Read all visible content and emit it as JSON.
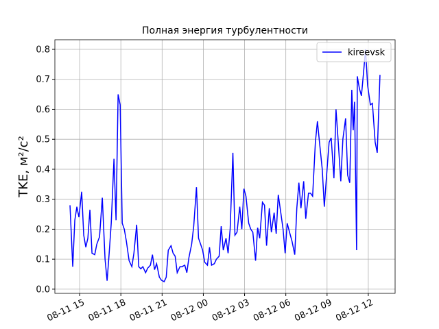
{
  "chart_data": {
    "type": "line",
    "title": "Полная энергия турбулентности",
    "y_label": "TKE, м²/с²",
    "x": [
      "08-11 14:18",
      "08-11 14:30",
      "08-11 14:39",
      "08-11 14:48",
      "08-11 14:57",
      "08-11 15:09",
      "08-11 15:18",
      "08-11 15:27",
      "08-11 15:36",
      "08-11 15:45",
      "08-11 15:54",
      "08-11 16:06",
      "08-11 16:15",
      "08-11 16:27",
      "08-11 16:39",
      "08-11 16:51",
      "08-11 17:00",
      "08-11 17:09",
      "08-11 17:18",
      "08-11 17:30",
      "08-11 17:39",
      "08-11 17:48",
      "08-11 17:57",
      "08-11 18:06",
      "08-11 18:15",
      "08-11 18:24",
      "08-11 18:36",
      "08-11 18:48",
      "08-11 18:57",
      "08-11 19:09",
      "08-11 19:18",
      "08-11 19:27",
      "08-11 19:36",
      "08-11 19:48",
      "08-11 19:57",
      "08-11 20:09",
      "08-11 20:18",
      "08-11 20:27",
      "08-11 20:36",
      "08-11 20:48",
      "08-11 20:57",
      "08-11 21:09",
      "08-11 21:18",
      "08-11 21:27",
      "08-11 21:39",
      "08-11 21:48",
      "08-11 21:57",
      "08-11 22:06",
      "08-11 22:18",
      "08-11 22:27",
      "08-11 22:39",
      "08-11 22:48",
      "08-11 22:57",
      "08-11 23:09",
      "08-11 23:18",
      "08-11 23:30",
      "08-11 23:39",
      "08-11 23:48",
      "08-11 23:57",
      "08-12 00:06",
      "08-12 00:18",
      "08-12 00:27",
      "08-12 00:36",
      "08-12 00:48",
      "08-12 00:57",
      "08-12 01:09",
      "08-12 01:18",
      "08-12 01:27",
      "08-12 01:39",
      "08-12 01:48",
      "08-12 01:57",
      "08-12 02:09",
      "08-12 02:18",
      "08-12 02:27",
      "08-12 02:39",
      "08-12 02:48",
      "08-12 02:57",
      "08-12 03:06",
      "08-12 03:18",
      "08-12 03:27",
      "08-12 03:36",
      "08-12 03:48",
      "08-12 03:57",
      "08-12 04:06",
      "08-12 04:18",
      "08-12 04:27",
      "08-12 04:36",
      "08-12 04:48",
      "08-12 04:57",
      "08-12 05:09",
      "08-12 05:18",
      "08-12 05:27",
      "08-12 05:39",
      "08-12 05:48",
      "08-12 05:57",
      "08-12 06:06",
      "08-12 06:18",
      "08-12 06:27",
      "08-12 06:39",
      "08-12 06:48",
      "08-12 06:57",
      "08-12 07:06",
      "08-12 07:18",
      "08-12 07:27",
      "08-12 07:39",
      "08-12 07:48",
      "08-12 07:57",
      "08-12 08:09",
      "08-12 08:18",
      "08-12 08:27",
      "08-12 08:39",
      "08-12 08:48",
      "08-12 08:57",
      "08-12 09:09",
      "08-12 09:18",
      "08-12 09:30",
      "08-12 09:39",
      "08-12 09:48",
      "08-12 10:00",
      "08-12 10:09",
      "08-12 10:21",
      "08-12 10:30",
      "08-12 10:39",
      "08-12 10:48",
      "08-12 10:54",
      "08-12 11:00",
      "08-12 11:09",
      "08-12 11:12",
      "08-12 11:21",
      "08-12 11:30",
      "08-12 11:39",
      "08-12 11:48",
      "08-12 11:57",
      "08-12 12:09",
      "08-12 12:18",
      "08-12 12:30",
      "08-12 12:39",
      "08-12 12:51"
    ],
    "series": [
      {
        "name": "kireevsk",
        "color": "#0000ff",
        "values": [
          0.28,
          0.075,
          0.23,
          0.275,
          0.24,
          0.325,
          0.18,
          0.14,
          0.17,
          0.265,
          0.12,
          0.115,
          0.15,
          0.175,
          0.305,
          0.1,
          0.028,
          0.12,
          0.22,
          0.435,
          0.23,
          0.65,
          0.615,
          0.22,
          0.2,
          0.16,
          0.095,
          0.075,
          0.12,
          0.215,
          0.075,
          0.068,
          0.075,
          0.055,
          0.07,
          0.08,
          0.115,
          0.065,
          0.085,
          0.04,
          0.03,
          0.025,
          0.04,
          0.13,
          0.145,
          0.12,
          0.11,
          0.055,
          0.075,
          0.075,
          0.08,
          0.055,
          0.105,
          0.15,
          0.21,
          0.34,
          0.17,
          0.15,
          0.13,
          0.09,
          0.08,
          0.14,
          0.08,
          0.085,
          0.1,
          0.11,
          0.21,
          0.13,
          0.17,
          0.12,
          0.2,
          0.455,
          0.18,
          0.19,
          0.275,
          0.2,
          0.335,
          0.31,
          0.22,
          0.2,
          0.19,
          0.095,
          0.205,
          0.17,
          0.29,
          0.28,
          0.145,
          0.27,
          0.19,
          0.255,
          0.185,
          0.315,
          0.25,
          0.2,
          0.12,
          0.22,
          0.185,
          0.16,
          0.115,
          0.27,
          0.355,
          0.27,
          0.36,
          0.235,
          0.32,
          0.32,
          0.31,
          0.49,
          0.56,
          0.49,
          0.4,
          0.275,
          0.37,
          0.49,
          0.505,
          0.37,
          0.6,
          0.5,
          0.36,
          0.5,
          0.57,
          0.38,
          0.355,
          0.665,
          0.53,
          0.625,
          0.13,
          0.71,
          0.67,
          0.645,
          0.72,
          0.8,
          0.68,
          0.615,
          0.62,
          0.49,
          0.455,
          0.715
        ]
      }
    ],
    "xlim": [
      "08-11 13:12",
      "08-12 13:57"
    ],
    "xticks": [
      "08-11 15",
      "08-11 18",
      "08-11 21",
      "08-12 00",
      "08-12 03",
      "08-12 06",
      "08-12 09",
      "08-12 12"
    ],
    "ylim": [
      -0.014,
      0.832
    ],
    "yticks": [
      {
        "value": 0,
        "label": "0.0"
      },
      0.1,
      0.2,
      0.3,
      0.4,
      0.5,
      0.6,
      0.7,
      0.8
    ],
    "grid": true,
    "legend": "upper right"
  }
}
